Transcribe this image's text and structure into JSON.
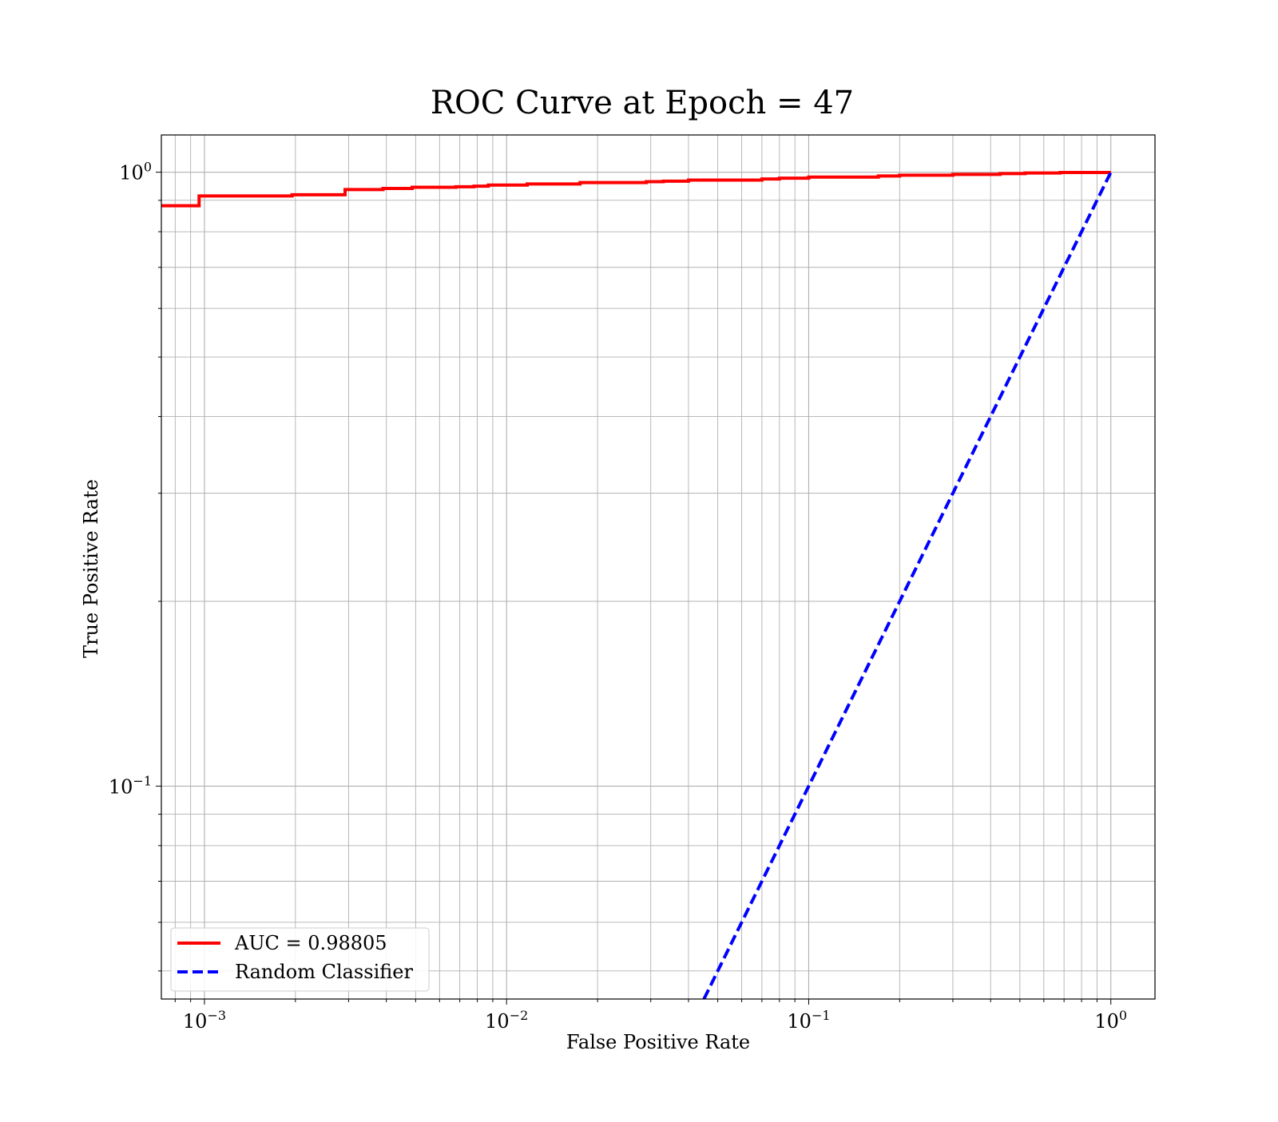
{
  "chart_data": {
    "type": "line",
    "title": "ROC Curve at Epoch = 47",
    "xlabel": "False Positive Rate",
    "ylabel": "True Positive Rate",
    "xscale": "log",
    "yscale": "log",
    "xlim": [
      0.00072,
      1.4
    ],
    "ylim": [
      0.045,
      1.15
    ],
    "grid": true,
    "grid_minor": true,
    "legend_position": "lower-left",
    "xticks": [
      {
        "value": 0.001,
        "base": "10",
        "exp": "−3"
      },
      {
        "value": 0.01,
        "base": "10",
        "exp": "−2"
      },
      {
        "value": 0.1,
        "base": "10",
        "exp": "−1"
      },
      {
        "value": 1,
        "base": "10",
        "exp": "0"
      }
    ],
    "yticks": [
      {
        "value": 0.1,
        "base": "10",
        "exp": "−1"
      },
      {
        "value": 1,
        "base": "10",
        "exp": "0"
      }
    ],
    "series": [
      {
        "name": "AUC = 0.98805",
        "color": "#ff0000",
        "style": "solid",
        "x": [
          0.0007,
          0.00096,
          0.00096,
          0.00195,
          0.00195,
          0.00292,
          0.00292,
          0.0039,
          0.0039,
          0.00487,
          0.00487,
          0.0068,
          0.0068,
          0.0078,
          0.0078,
          0.0087,
          0.0087,
          0.0117,
          0.0117,
          0.0175,
          0.0175,
          0.029,
          0.029,
          0.033,
          0.033,
          0.04,
          0.04,
          0.07,
          0.07,
          0.08,
          0.08,
          0.1,
          0.1,
          0.17,
          0.17,
          0.2,
          0.2,
          0.3,
          0.3,
          0.43,
          0.43,
          0.52,
          0.52,
          0.68,
          0.68,
          1.0
        ],
        "y": [
          0.882,
          0.882,
          0.915,
          0.915,
          0.919,
          0.919,
          0.937,
          0.937,
          0.941,
          0.941,
          0.945,
          0.945,
          0.947,
          0.947,
          0.949,
          0.949,
          0.953,
          0.953,
          0.957,
          0.957,
          0.962,
          0.962,
          0.965,
          0.965,
          0.967,
          0.967,
          0.971,
          0.971,
          0.975,
          0.975,
          0.978,
          0.978,
          0.982,
          0.982,
          0.986,
          0.986,
          0.989,
          0.989,
          0.992,
          0.992,
          0.995,
          0.995,
          0.997,
          0.997,
          0.999,
          0.999
        ]
      },
      {
        "name": "Random Classifier",
        "color": "#0000ff",
        "style": "dashed",
        "x": [
          0.045,
          1.0
        ],
        "y": [
          0.045,
          1.0
        ]
      }
    ]
  }
}
